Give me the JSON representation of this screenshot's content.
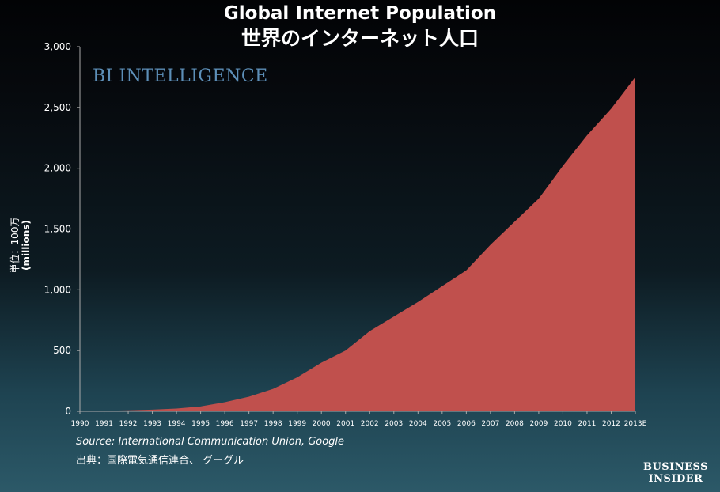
{
  "title_en": "Global Internet Population",
  "title_ja": "世界のインターネット人口",
  "watermark": "BI INTELLIGENCE",
  "ylabel_ja": "単位：100万",
  "ylabel_en": "(millions)",
  "source_en": "Source: International Communication Union, Google",
  "source_ja": "出典：国際電気通信連合、 グーグル",
  "logo_line1": "BUSINESS",
  "logo_line2": "INSIDER",
  "colors": {
    "area": "#c0504d",
    "axis": "#aaaaaa",
    "text": "#ffffff"
  },
  "chart_data": {
    "type": "area",
    "title": "Global Internet Population",
    "ylabel": "(millions)",
    "ylim": [
      0,
      3000
    ],
    "yticks": [
      0,
      500,
      1000,
      1500,
      2000,
      2500,
      3000
    ],
    "ytick_labels": [
      "0",
      "500",
      "1,000",
      "1,500",
      "2,000",
      "2,500",
      "3,000"
    ],
    "categories": [
      "1990",
      "1991",
      "1992",
      "1993",
      "1994",
      "1995",
      "1996",
      "1997",
      "1998",
      "1999",
      "2000",
      "2001",
      "2002",
      "2003",
      "2004",
      "2005",
      "2006",
      "2007",
      "2008",
      "2009",
      "2010",
      "2011",
      "2012",
      "2013E"
    ],
    "values": [
      2,
      4,
      8,
      14,
      23,
      40,
      75,
      120,
      185,
      280,
      400,
      500,
      660,
      780,
      900,
      1030,
      1160,
      1370,
      1560,
      1750,
      2020,
      2270,
      2490,
      2750
    ],
    "grid": false,
    "legend": "none"
  }
}
